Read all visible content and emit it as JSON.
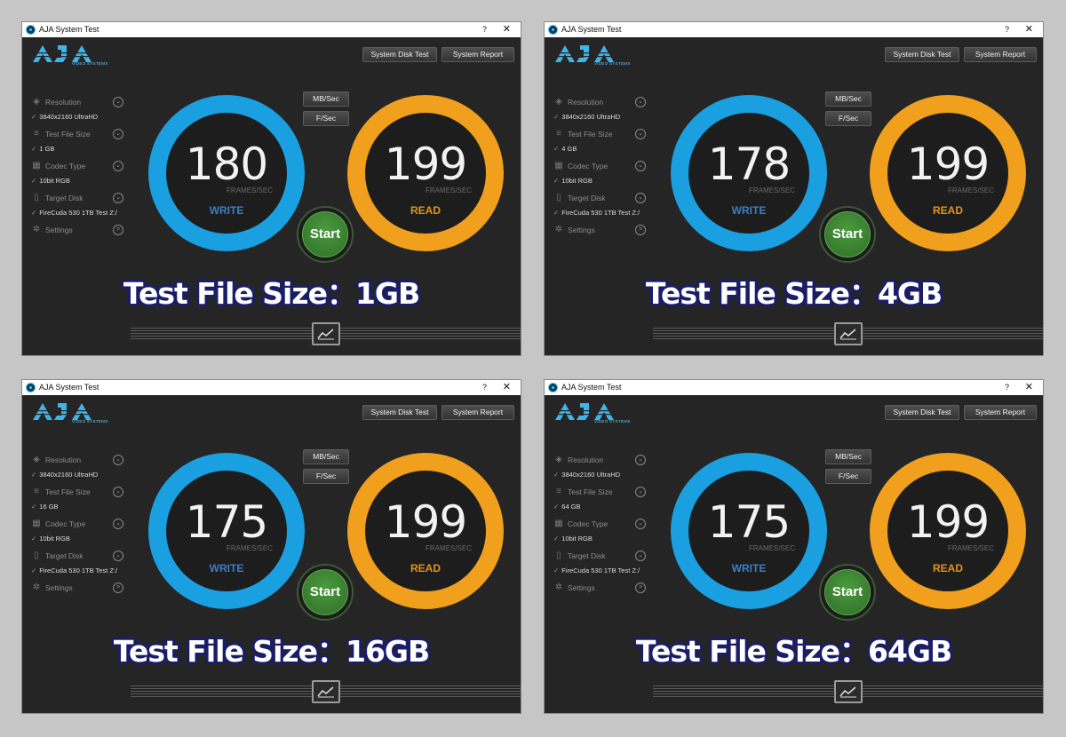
{
  "panels": [
    {
      "window_title": "AJA System Test",
      "help": "?",
      "close": "✕",
      "logo_sub": "VIDEO SYSTEMS",
      "buttons": {
        "system_disk_test": "System Disk Test",
        "system_report": "System Report",
        "mb_sec": "MB/Sec",
        "f_sec": "F/Sec",
        "start": "Start"
      },
      "sidebar": [
        {
          "label": "Resolution",
          "value": "3840x2160 UltraHD",
          "icon": "resolution-icon"
        },
        {
          "label": "Test File Size",
          "value": "1 GB",
          "icon": "file-size-icon"
        },
        {
          "label": "Codec Type",
          "value": "10bit RGB",
          "icon": "codec-icon"
        },
        {
          "label": "Target Disk",
          "value": "FireCuda 530 1TB Test Z:/",
          "icon": "disk-icon"
        },
        {
          "label": "Settings",
          "value": "",
          "icon": "gear-icon"
        }
      ],
      "write": {
        "value": "180",
        "unit": "FRAMES/SEC",
        "label": "WRITE"
      },
      "read": {
        "value": "199",
        "unit": "FRAMES/SEC",
        "label": "READ"
      },
      "caption": "Test File Size：1GB"
    },
    {
      "window_title": "AJA System Test",
      "help": "?",
      "close": "✕",
      "logo_sub": "VIDEO SYSTEMS",
      "buttons": {
        "system_disk_test": "System Disk Test",
        "system_report": "System Report",
        "mb_sec": "MB/Sec",
        "f_sec": "F/Sec",
        "start": "Start"
      },
      "sidebar": [
        {
          "label": "Resolution",
          "value": "3840x2160 UltraHD",
          "icon": "resolution-icon"
        },
        {
          "label": "Test File Size",
          "value": "4 GB",
          "icon": "file-size-icon"
        },
        {
          "label": "Codec Type",
          "value": "10bit RGB",
          "icon": "codec-icon"
        },
        {
          "label": "Target Disk",
          "value": "FireCuda 530 1TB Test Z:/",
          "icon": "disk-icon"
        },
        {
          "label": "Settings",
          "value": "",
          "icon": "gear-icon"
        }
      ],
      "write": {
        "value": "178",
        "unit": "FRAMES/SEC",
        "label": "WRITE"
      },
      "read": {
        "value": "199",
        "unit": "FRAMES/SEC",
        "label": "READ"
      },
      "caption": "Test File Size：4GB"
    },
    {
      "window_title": "AJA System Test",
      "help": "?",
      "close": "✕",
      "logo_sub": "VIDEO SYSTEMS",
      "buttons": {
        "system_disk_test": "System Disk Test",
        "system_report": "System Report",
        "mb_sec": "MB/Sec",
        "f_sec": "F/Sec",
        "start": "Start"
      },
      "sidebar": [
        {
          "label": "Resolution",
          "value": "3840x2160 UltraHD",
          "icon": "resolution-icon"
        },
        {
          "label": "Test File Size",
          "value": "16 GB",
          "icon": "file-size-icon"
        },
        {
          "label": "Codec Type",
          "value": "10bit RGB",
          "icon": "codec-icon"
        },
        {
          "label": "Target Disk",
          "value": "FireCuda 530 1TB Test Z:/",
          "icon": "disk-icon"
        },
        {
          "label": "Settings",
          "value": "",
          "icon": "gear-icon"
        }
      ],
      "write": {
        "value": "175",
        "unit": "FRAMES/SEC",
        "label": "WRITE"
      },
      "read": {
        "value": "199",
        "unit": "FRAMES/SEC",
        "label": "READ"
      },
      "caption": "Test File Size：16GB"
    },
    {
      "window_title": "AJA System Test",
      "help": "?",
      "close": "✕",
      "logo_sub": "VIDEO SYSTEMS",
      "buttons": {
        "system_disk_test": "System Disk Test",
        "system_report": "System Report",
        "mb_sec": "MB/Sec",
        "f_sec": "F/Sec",
        "start": "Start"
      },
      "sidebar": [
        {
          "label": "Resolution",
          "value": "3840x2160 UltraHD",
          "icon": "resolution-icon"
        },
        {
          "label": "Test File Size",
          "value": "64 GB",
          "icon": "file-size-icon"
        },
        {
          "label": "Codec Type",
          "value": "10bit RGB",
          "icon": "codec-icon"
        },
        {
          "label": "Target Disk",
          "value": "FireCuda 530 1TB Test Z:/",
          "icon": "disk-icon"
        },
        {
          "label": "Settings",
          "value": "",
          "icon": "gear-icon"
        }
      ],
      "write": {
        "value": "175",
        "unit": "FRAMES/SEC",
        "label": "WRITE"
      },
      "read": {
        "value": "199",
        "unit": "FRAMES/SEC",
        "label": "READ"
      },
      "caption": "Test File Size：64GB"
    }
  ],
  "colors": {
    "write_ring": "#1a9fe0",
    "read_ring": "#f0a01c",
    "start": "#3f8a35",
    "caption_outline": "#1a1d6a",
    "background": "#252525"
  }
}
